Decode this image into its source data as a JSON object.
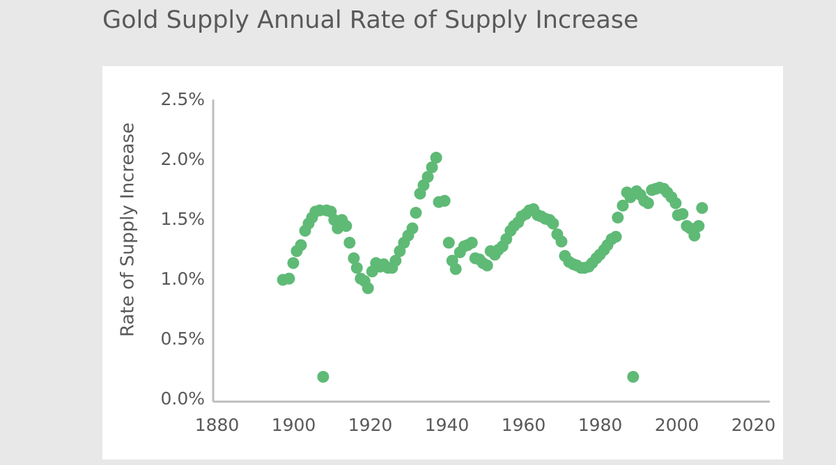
{
  "chart_data": {
    "type": "scatter",
    "title": "Gold Supply Annual Rate of Supply Increase",
    "y_label": "Rate of Supply Increase",
    "color": "#5fba76",
    "xlim": [
      1879,
      2024
    ],
    "xticks": [
      1880,
      1900,
      1920,
      1940,
      1960,
      1980,
      2000,
      2020
    ],
    "ylim": [
      0,
      2.5
    ],
    "yticks": [
      {
        "value": 0,
        "label": "0.0%"
      },
      {
        "value": 0.5,
        "label": "0.5%"
      },
      {
        "value": 1,
        "label": "1.0%"
      },
      {
        "value": 1.5,
        "label": "1.5%"
      },
      {
        "value": 2,
        "label": "2.0%"
      },
      {
        "value": 2.5,
        "label": "2.5%"
      }
    ],
    "x": [
      1897.2,
      1898.8,
      1899.9,
      1900.8,
      1901.9,
      1903,
      1903.9,
      1904.8,
      1905.7,
      1906.8,
      1907.7,
      1908.6,
      1909.7,
      1910.6,
      1911.5,
      1912.6,
      1913.7,
      1914.6,
      1915.7,
      1916.5,
      1917.5,
      1918.5,
      1919.4,
      1920.5,
      1921.5,
      1922.6,
      1923.5,
      1924.6,
      1925.7,
      1926.6,
      1927.7,
      1928.8,
      1929.9,
      1931,
      1931.9,
      1933,
      1933.9,
      1935,
      1936.1,
      1937.2,
      1937.9,
      1939.4,
      1940.5,
      1941.4,
      1942.3,
      1943.4,
      1944.5,
      1945.4,
      1946.5,
      1947.4,
      1948.5,
      1949.4,
      1950.5,
      1951.4,
      1952.5,
      1953.4,
      1954.5,
      1955.5,
      1956.6,
      1957.5,
      1958.6,
      1959.5,
      1960.6,
      1961.5,
      1962.6,
      1963.7,
      1964.6,
      1965.7,
      1966.8,
      1967.7,
      1968.8,
      1969.9,
      1970.8,
      1971.9,
      1973,
      1973.9,
      1975,
      1975.9,
      1977,
      1977.9,
      1979,
      1979.9,
      1981,
      1981.9,
      1983,
      1984.1,
      1984.6,
      1985.9,
      1987,
      1987.9,
      1988.6,
      1989.5,
      1990.5,
      1991.5,
      1992.5,
      1993.5,
      1994.5,
      1995.5,
      1996.6,
      1997.5,
      1998.6,
      1999.7,
      2000.3,
      2001.5,
      2002.6,
      2003.5,
      2004.6,
      2005.7,
      2006.6
    ],
    "values": [
      1.0,
      1.01,
      1.14,
      1.24,
      1.29,
      1.41,
      1.47,
      1.52,
      1.57,
      1.58,
      0.19,
      1.58,
      1.57,
      1.5,
      1.43,
      1.5,
      1.45,
      1.31,
      1.18,
      1.1,
      1.01,
      0.99,
      0.93,
      1.07,
      1.14,
      1.11,
      1.13,
      1.1,
      1.1,
      1.16,
      1.24,
      1.31,
      1.37,
      1.43,
      1.56,
      1.72,
      1.79,
      1.86,
      1.94,
      2.02,
      1.65,
      1.66,
      1.31,
      1.16,
      1.09,
      1.23,
      1.28,
      1.29,
      1.31,
      1.18,
      1.17,
      1.14,
      1.12,
      1.24,
      1.21,
      1.25,
      1.28,
      1.34,
      1.41,
      1.45,
      1.48,
      1.53,
      1.55,
      1.58,
      1.59,
      1.54,
      1.53,
      1.51,
      1.5,
      1.47,
      1.38,
      1.32,
      1.2,
      1.15,
      1.13,
      1.12,
      1.1,
      1.1,
      1.11,
      1.14,
      1.18,
      1.21,
      1.25,
      1.29,
      1.34,
      1.36,
      1.52,
      1.62,
      1.73,
      1.69,
      0.19,
      1.74,
      1.71,
      1.66,
      1.64,
      1.75,
      1.76,
      1.77,
      1.76,
      1.73,
      1.69,
      1.64,
      1.54,
      1.55,
      1.45,
      1.43,
      1.37,
      1.45,
      1.6
    ]
  }
}
